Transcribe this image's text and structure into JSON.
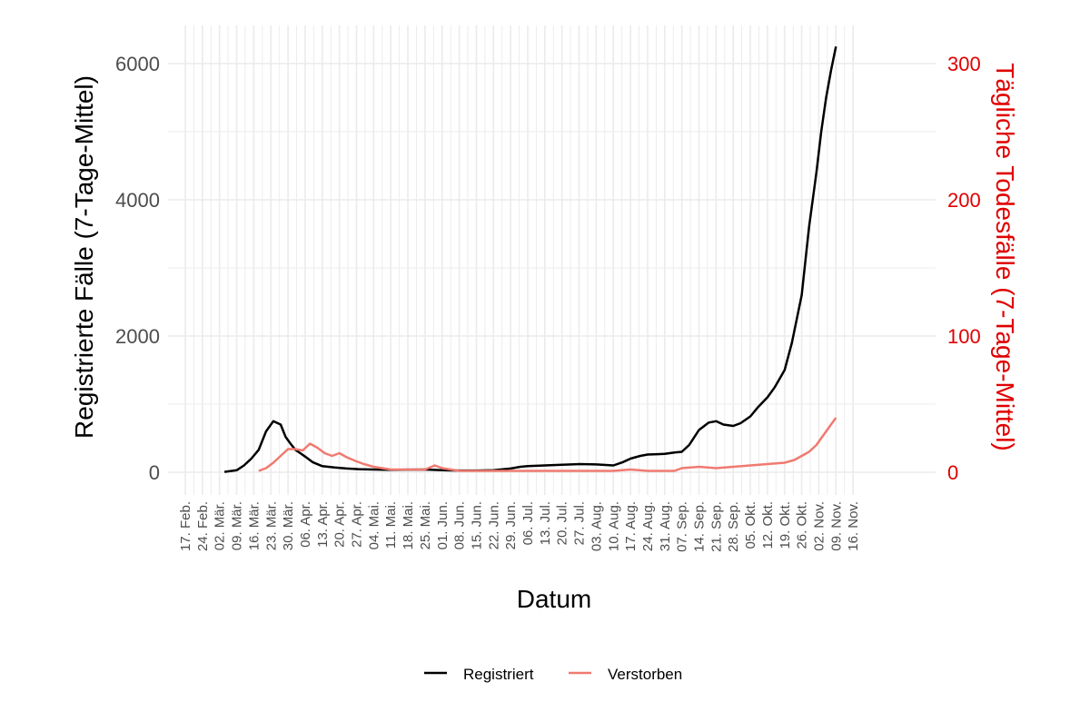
{
  "colors": {
    "registriert": "#000000",
    "verstorben": "#f07a70",
    "right_axis": "#e00000",
    "grid": "#ebebeb"
  },
  "chart_data": {
    "type": "line",
    "xlabel": "Datum",
    "ylabel": "Registrierte Fälle (7-Tage-Mittel)",
    "y2label": "Tägliche Todesfälle (7-Tage-Mittel)",
    "ylim": [
      0,
      6600
    ],
    "y2lim": [
      0,
      330
    ],
    "y_ticks": [
      "0",
      "2000",
      "4000",
      "6000"
    ],
    "y_tick_values": [
      0,
      2000,
      4000,
      6000
    ],
    "y2_ticks": [
      "0",
      "100",
      "200",
      "300"
    ],
    "y2_tick_values": [
      0,
      100,
      200,
      300
    ],
    "x_tick_labels": [
      "17. Feb.",
      "24. Feb.",
      "02. Mär.",
      "09. Mär.",
      "16. Mär.",
      "23. Mär.",
      "30. Mär.",
      "06. Apr.",
      "13. Apr.",
      "20. Apr.",
      "27. Apr.",
      "04. Mai.",
      "11. Mai.",
      "18. Mai.",
      "25. Mai.",
      "01. Jun.",
      "08. Jun.",
      "15. Jun.",
      "22. Jun.",
      "29. Jun.",
      "06. Jul.",
      "13. Jul.",
      "20. Jul.",
      "27. Jul.",
      "03. Aug.",
      "10. Aug.",
      "17. Aug.",
      "24. Aug.",
      "31. Aug.",
      "07. Sep.",
      "14. Sep.",
      "21. Sep.",
      "28. Sep.",
      "05. Okt.",
      "12. Okt.",
      "19. Okt.",
      "26. Okt.",
      "02. Nov.",
      "09. Nov.",
      "16. Nov."
    ],
    "grid": true,
    "legend_position": "bottom",
    "series": [
      {
        "name": "Registriert",
        "axis": "left",
        "x": [
          "2020-03-04",
          "2020-03-09",
          "2020-03-12",
          "2020-03-15",
          "2020-03-18",
          "2020-03-21",
          "2020-03-24",
          "2020-03-27",
          "2020-03-29",
          "2020-03-31",
          "2020-04-02",
          "2020-04-04",
          "2020-04-06",
          "2020-04-09",
          "2020-04-13",
          "2020-04-18",
          "2020-04-23",
          "2020-04-28",
          "2020-05-04",
          "2020-05-11",
          "2020-05-18",
          "2020-05-25",
          "2020-06-01",
          "2020-06-08",
          "2020-06-15",
          "2020-06-22",
          "2020-06-29",
          "2020-07-03",
          "2020-07-06",
          "2020-07-13",
          "2020-07-20",
          "2020-07-27",
          "2020-08-03",
          "2020-08-10",
          "2020-08-14",
          "2020-08-17",
          "2020-08-21",
          "2020-08-24",
          "2020-08-28",
          "2020-08-31",
          "2020-09-04",
          "2020-09-07",
          "2020-09-10",
          "2020-09-14",
          "2020-09-18",
          "2020-09-21",
          "2020-09-24",
          "2020-09-28",
          "2020-10-01",
          "2020-10-05",
          "2020-10-08",
          "2020-10-12",
          "2020-10-15",
          "2020-10-19",
          "2020-10-22",
          "2020-10-26",
          "2020-10-29",
          "2020-11-01",
          "2020-11-03",
          "2020-11-05",
          "2020-11-07",
          "2020-11-09"
        ],
        "values": [
          5,
          30,
          100,
          200,
          330,
          600,
          750,
          700,
          520,
          420,
          330,
          280,
          230,
          150,
          90,
          70,
          55,
          45,
          40,
          35,
          38,
          40,
          30,
          25,
          25,
          30,
          55,
          80,
          90,
          100,
          110,
          120,
          115,
          100,
          150,
          200,
          240,
          260,
          265,
          270,
          290,
          300,
          400,
          620,
          730,
          750,
          700,
          680,
          720,
          820,
          950,
          1100,
          1250,
          1500,
          1900,
          2600,
          3600,
          4400,
          5000,
          5500,
          5900,
          6250
        ]
      },
      {
        "name": "Verstorben",
        "axis": "right",
        "x": [
          "2020-03-18",
          "2020-03-21",
          "2020-03-24",
          "2020-03-27",
          "2020-03-30",
          "2020-04-02",
          "2020-04-05",
          "2020-04-08",
          "2020-04-11",
          "2020-04-14",
          "2020-04-17",
          "2020-04-20",
          "2020-04-23",
          "2020-04-27",
          "2020-04-30",
          "2020-05-04",
          "2020-05-11",
          "2020-05-18",
          "2020-05-25",
          "2020-05-29",
          "2020-06-01",
          "2020-06-08",
          "2020-06-15",
          "2020-06-22",
          "2020-06-29",
          "2020-07-06",
          "2020-07-13",
          "2020-07-20",
          "2020-07-27",
          "2020-08-03",
          "2020-08-10",
          "2020-08-17",
          "2020-08-24",
          "2020-08-31",
          "2020-09-04",
          "2020-09-07",
          "2020-09-14",
          "2020-09-21",
          "2020-09-28",
          "2020-10-05",
          "2020-10-12",
          "2020-10-19",
          "2020-10-23",
          "2020-10-26",
          "2020-10-29",
          "2020-11-01",
          "2020-11-03",
          "2020-11-05",
          "2020-11-07",
          "2020-11-09"
        ],
        "values": [
          1,
          3,
          7,
          12,
          17,
          17,
          16,
          21,
          18,
          14,
          12,
          14,
          11,
          8,
          6,
          4,
          2,
          2,
          2,
          5,
          3,
          1,
          1,
          1,
          1,
          1,
          1,
          1,
          1,
          1,
          1,
          2,
          1,
          1,
          1,
          3,
          4,
          3,
          4,
          5,
          6,
          7,
          9,
          12,
          15,
          20,
          25,
          30,
          35,
          40
        ]
      }
    ]
  }
}
